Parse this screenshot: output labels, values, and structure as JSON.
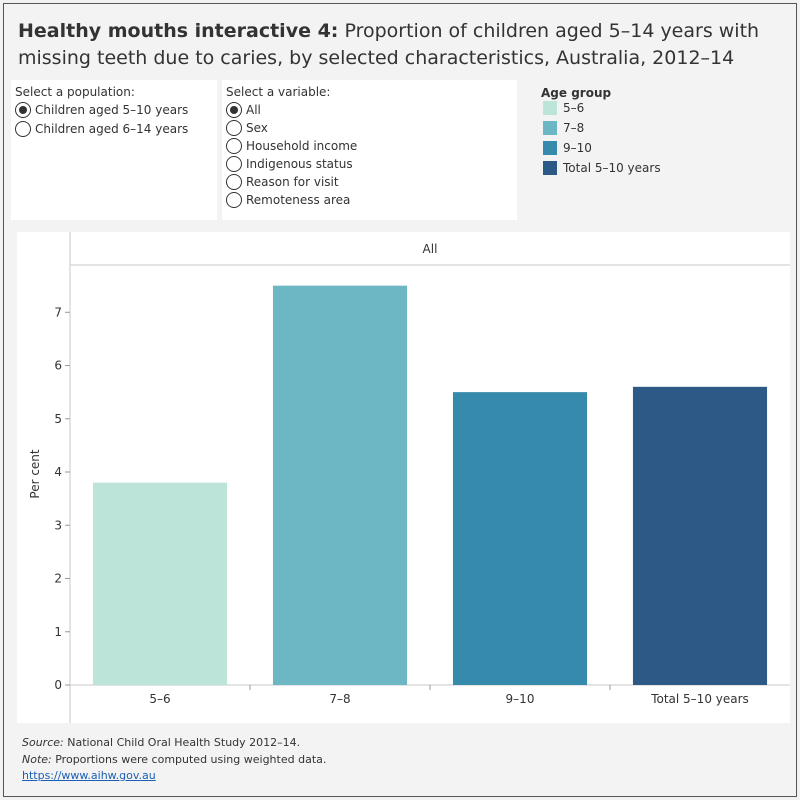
{
  "header": {
    "title_bold": "Healthy mouths interactive 4:",
    "title_rest": " Proportion of children aged 5–14 years with missing teeth due to caries, by selected characteristics, Australia, 2012–14"
  },
  "population": {
    "label": "Select a population:",
    "options": [
      {
        "label": "Children aged 5–10 years",
        "selected": true
      },
      {
        "label": "Children aged 6–14 years",
        "selected": false
      }
    ]
  },
  "variable": {
    "label": "Select a variable:",
    "options": [
      {
        "label": "All",
        "selected": true
      },
      {
        "label": "Sex",
        "selected": false
      },
      {
        "label": "Household income",
        "selected": false
      },
      {
        "label": "Indigenous status",
        "selected": false
      },
      {
        "label": "Reason for visit",
        "selected": false
      },
      {
        "label": "Remoteness area",
        "selected": false
      }
    ]
  },
  "legend": {
    "title": "Age group",
    "items": [
      {
        "label": "5–6",
        "color": "#bde4d8"
      },
      {
        "label": "7–8",
        "color": "#6db6c4"
      },
      {
        "label": "9–10",
        "color": "#368aab"
      },
      {
        "label": "Total 5–10 years",
        "color": "#2c5985"
      }
    ]
  },
  "chart_data": {
    "type": "bar",
    "panel_title": "All",
    "categories": [
      "5–6",
      "7–8",
      "9–10",
      "Total 5–10 years"
    ],
    "values": [
      3.8,
      7.5,
      5.5,
      5.6
    ],
    "colors": [
      "#bde4d8",
      "#6db6c4",
      "#368aab",
      "#2c5985"
    ],
    "ylabel": "Per cent",
    "ylim": [
      0,
      7.7
    ],
    "yticks": [
      0,
      1,
      2,
      3,
      4,
      5,
      6,
      7
    ],
    "grid": false
  },
  "footer": {
    "source_label": "Source:",
    "source_text": " National Child Oral Health Study 2012–14.",
    "note_label": "Note:",
    "note_text": " Proportions were computed using weighted data.",
    "link": "https://www.aihw.gov.au"
  }
}
